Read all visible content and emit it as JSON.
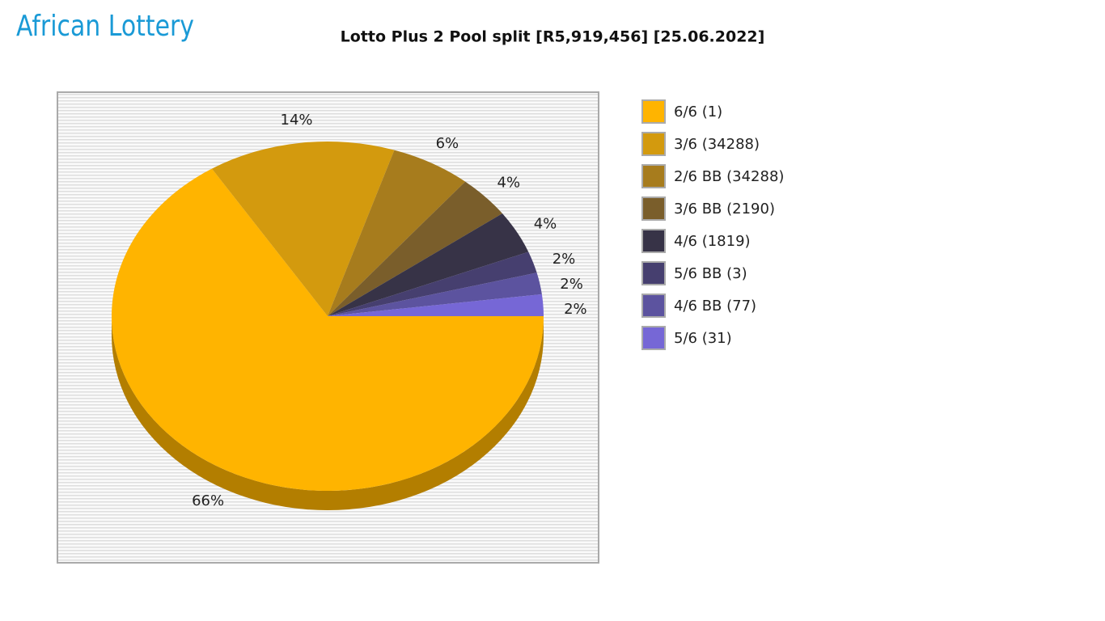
{
  "logo": "African Lottery",
  "chart_data": {
    "type": "pie",
    "title": "Lotto Plus 2 Pool split [R5,919,456] [25.06.2022]",
    "categories": [
      "6/6 (1)",
      "3/6 (34288)",
      "2/6 BB (34288)",
      "3/6 BB (2190)",
      "4/6 (1819)",
      "5/6 BB (3)",
      "4/6 BB (77)",
      "5/6 (31)"
    ],
    "values": [
      66,
      14,
      6,
      4,
      4,
      2,
      2,
      2
    ],
    "value_labels": [
      "66%",
      "14%",
      "6%",
      "4%",
      "4%",
      "2%",
      "2%",
      "2%"
    ],
    "colors": [
      "#ffb400",
      "#d39a0e",
      "#a77c1d",
      "#7a5e2b",
      "#373347",
      "#463f6f",
      "#5c539f",
      "#7667d6"
    ],
    "legend": "right"
  }
}
